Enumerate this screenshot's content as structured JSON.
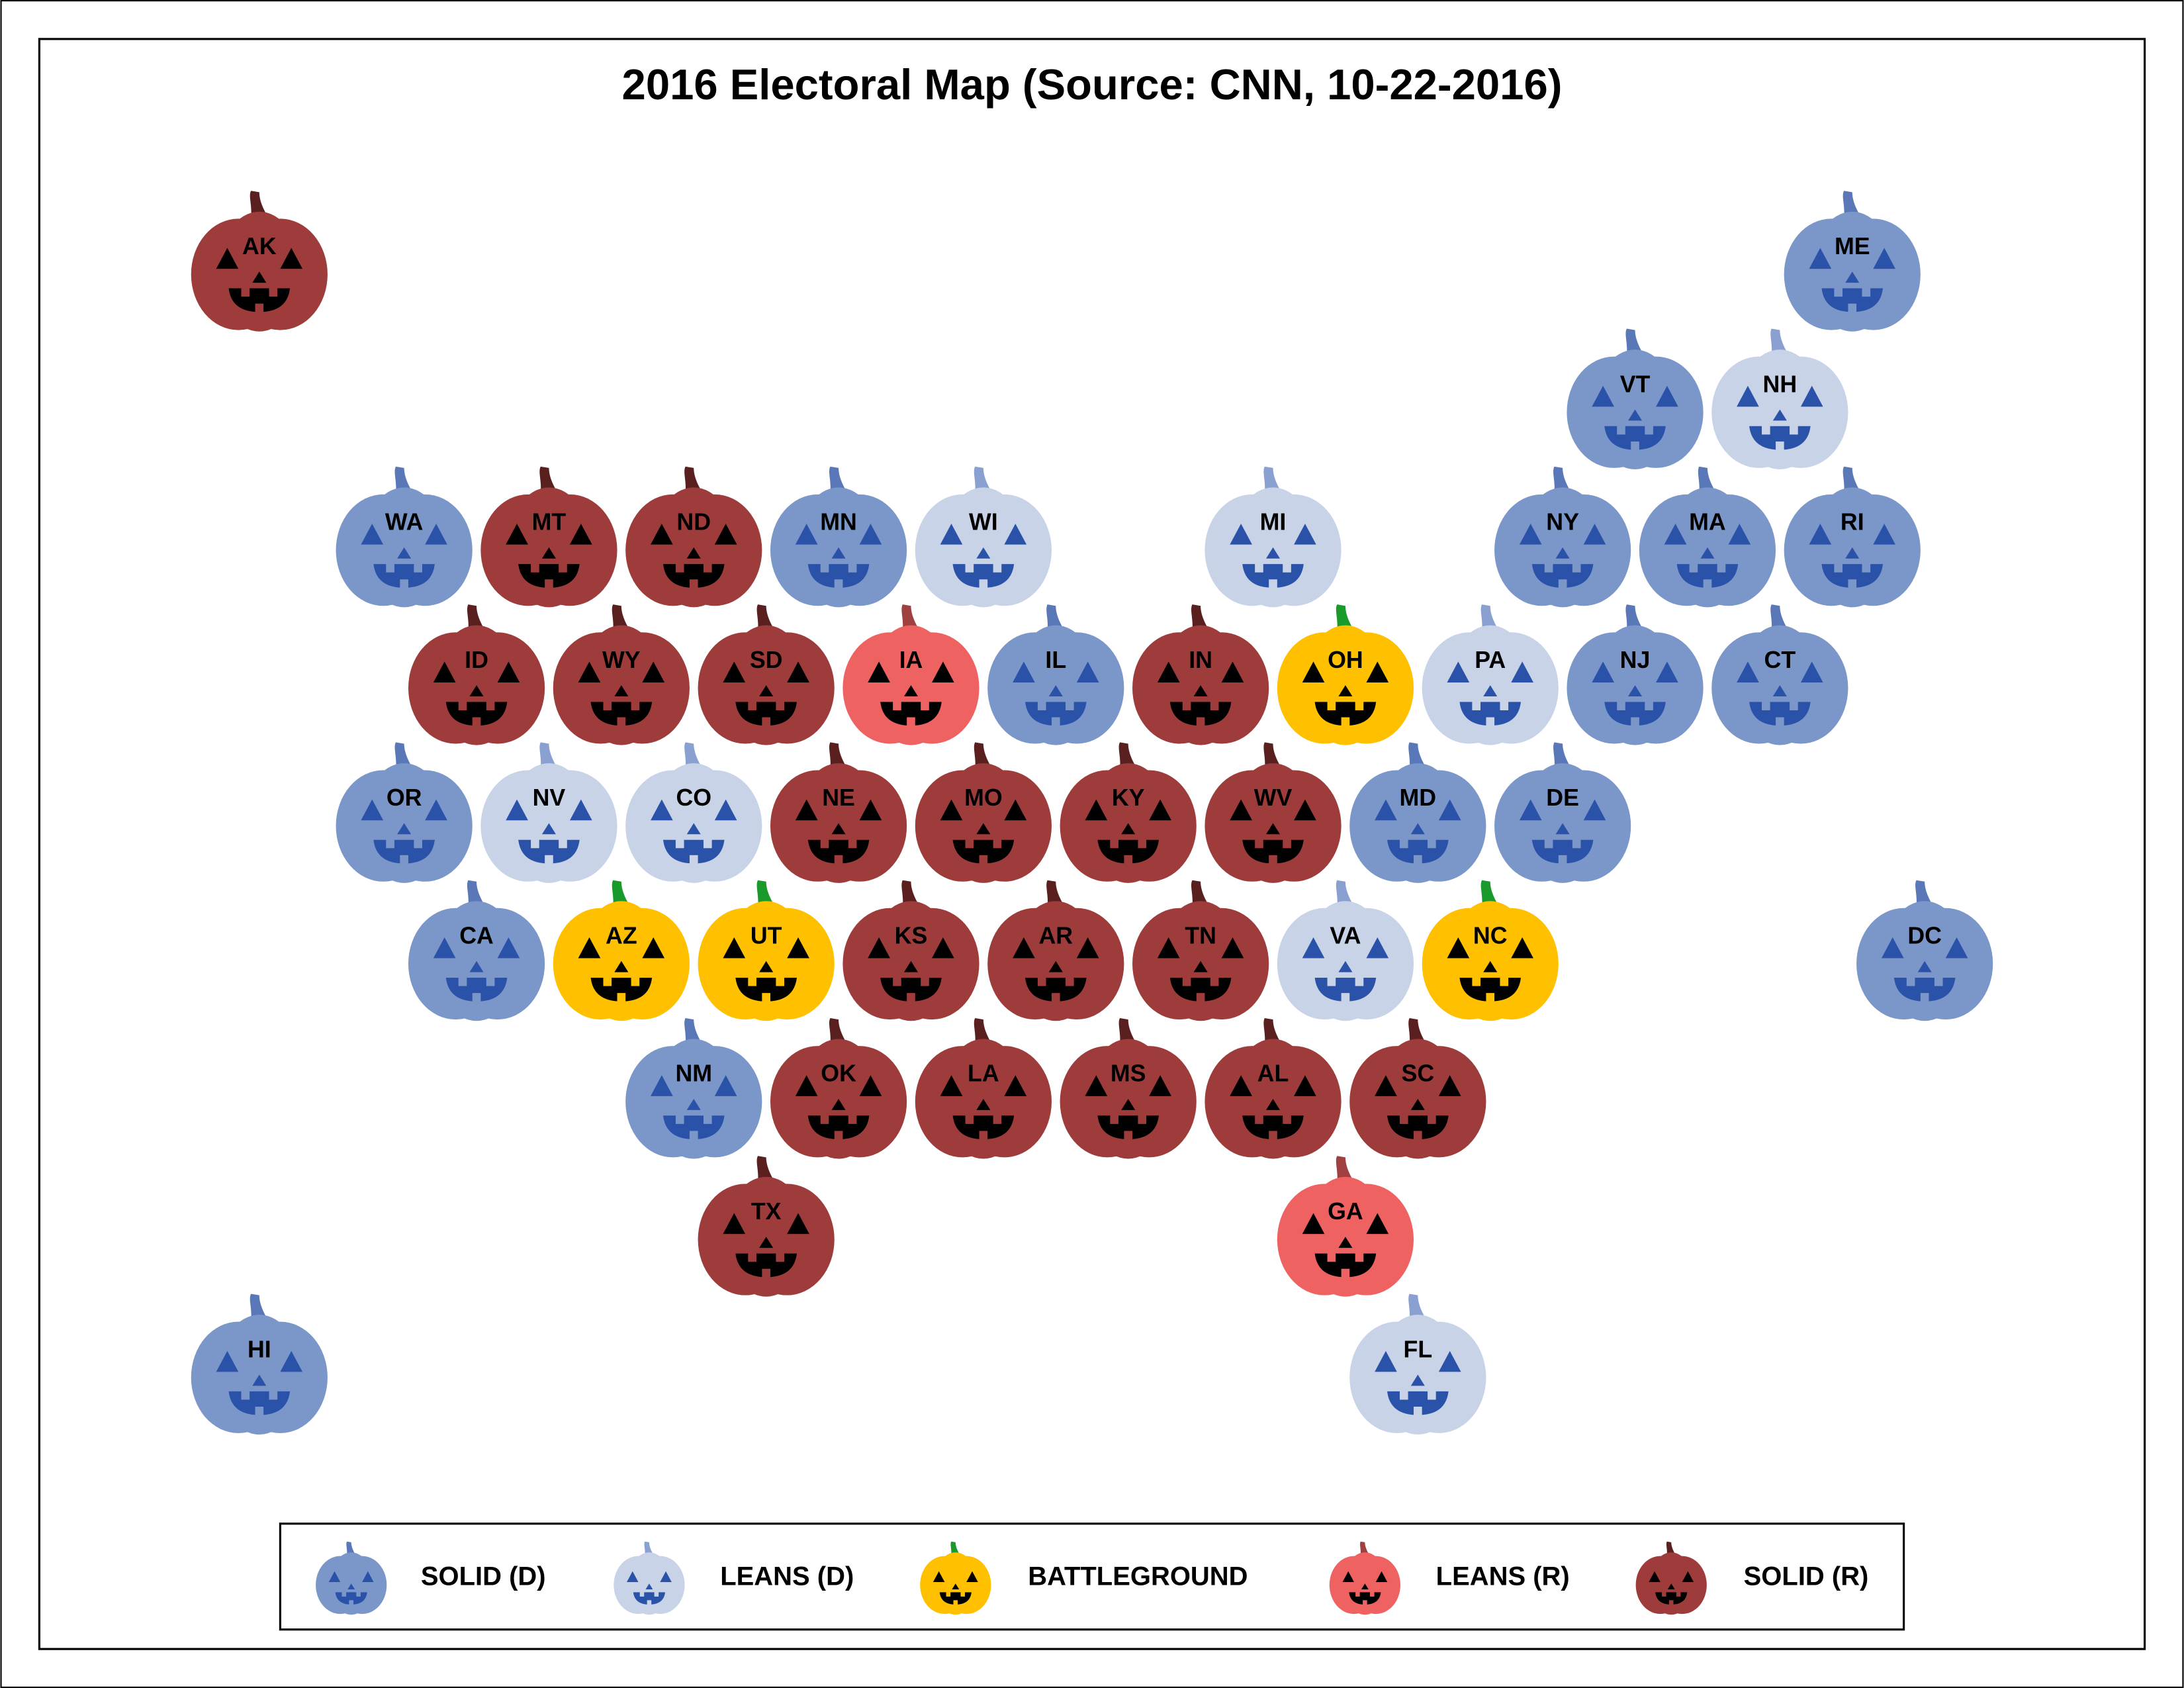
{
  "title": "2016 Electoral Map (Source: CNN, 10-22-2016)",
  "categories": [
    {
      "label": "SOLID (D)",
      "color": "#7b96c8",
      "feature_color": "#2a52a8",
      "stem_color": "#5a78b8",
      "states": [
        "ME",
        "VT",
        "WA",
        "MN",
        "NY",
        "MA",
        "RI",
        "IL",
        "NJ",
        "CT",
        "OR",
        "MD",
        "DE",
        "CA",
        "DC",
        "NM",
        "HI"
      ]
    },
    {
      "label": "LEANS (D)",
      "color": "#c8d3e8",
      "feature_color": "#2a52a8",
      "stem_color": "#8aa0d0",
      "states": [
        "NH",
        "WI",
        "MI",
        "PA",
        "NV",
        "CO",
        "VA",
        "FL"
      ]
    },
    {
      "label": "BATTLEGROUND",
      "color": "#ffc000",
      "feature_color": "#000000",
      "stem_color": "#1a9a2a",
      "states": [
        "OH",
        "AZ",
        "UT",
        "NC"
      ]
    },
    {
      "label": "LEANS (R)",
      "color": "#ee6262",
      "feature_color": "#000000",
      "stem_color": "#a04040",
      "states": [
        "IA",
        "GA"
      ]
    },
    {
      "label": "SOLID (R)",
      "color": "#9e3b3b",
      "feature_color": "#000000",
      "stem_color": "#5a2020",
      "states": [
        "AK",
        "MT",
        "ND",
        "ID",
        "WY",
        "SD",
        "IN",
        "NE",
        "MO",
        "KY",
        "WV",
        "KS",
        "AR",
        "TN",
        "OK",
        "LA",
        "MS",
        "AL",
        "SC",
        "TX"
      ]
    }
  ]
}
